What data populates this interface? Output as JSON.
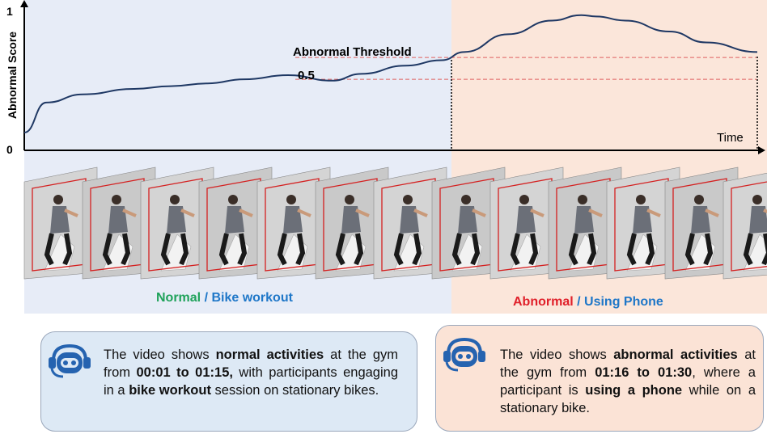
{
  "chart": {
    "y_axis_title": "Abnormal Score",
    "y_tick_top": "1",
    "y_tick_bottom": "0",
    "x_axis_title": "Time",
    "threshold_label": "Abnormal Threshold",
    "half_label": "0.5",
    "colors": {
      "normal_bg": "#e7ecf7",
      "abnormal_bg": "#fbe6da",
      "curve": "#1f3864",
      "threshold_line": "#e06060"
    }
  },
  "chart_data": {
    "type": "line",
    "x": [
      0.0,
      0.03,
      0.08,
      0.15,
      0.2,
      0.25,
      0.3,
      0.36,
      0.42,
      0.46,
      0.52,
      0.57,
      0.6,
      0.66,
      0.72,
      0.76,
      0.78,
      0.82,
      0.88,
      0.93,
      1.0
    ],
    "y": [
      0.13,
      0.35,
      0.41,
      0.45,
      0.47,
      0.49,
      0.52,
      0.55,
      0.51,
      0.56,
      0.62,
      0.66,
      0.72,
      0.85,
      0.95,
      0.99,
      0.98,
      0.95,
      0.87,
      0.79,
      0.72
    ],
    "xlabel": "Time",
    "ylabel": "Abnormal Score",
    "ylim": [
      0,
      1
    ],
    "thresholds": [
      {
        "label": "Abnormal Threshold",
        "value": 0.68
      },
      {
        "label": "0.5",
        "value": 0.52
      }
    ],
    "boundary_x": 0.58
  },
  "frames": {
    "normal_count": 7,
    "abnormal_count": 6,
    "normal_label_word1": "Normal",
    "normal_label_sep": " / ",
    "normal_label_word2": "Bike workout",
    "abnormal_label_word1": "Abnormal",
    "abnormal_label_sep": " / ",
    "abnormal_label_word2": "Using Phone",
    "colors": {
      "normal": "#1fa25a",
      "abnormal": "#e0202a",
      "activity": "#1f77c8",
      "sep": "#1f77c8"
    }
  },
  "bubbles": {
    "normal": {
      "p1": "The video shows ",
      "b1": "normal activities",
      "p2": " at the gym from ",
      "b2": "00:01 to 01:15,",
      "p3": " with participants engaging in a ",
      "b3": "bike workout",
      "p4": " session on stationary bikes."
    },
    "abnormal": {
      "p1": "The video shows ",
      "b1": "abnormal activities",
      "p2": " at the gym from ",
      "b2": "01:16 to 01:30",
      "p3": ", where a participant is ",
      "b3": "using a phone",
      "p4": " while on a stationary bike."
    },
    "icon": "robot-headset-icon"
  }
}
